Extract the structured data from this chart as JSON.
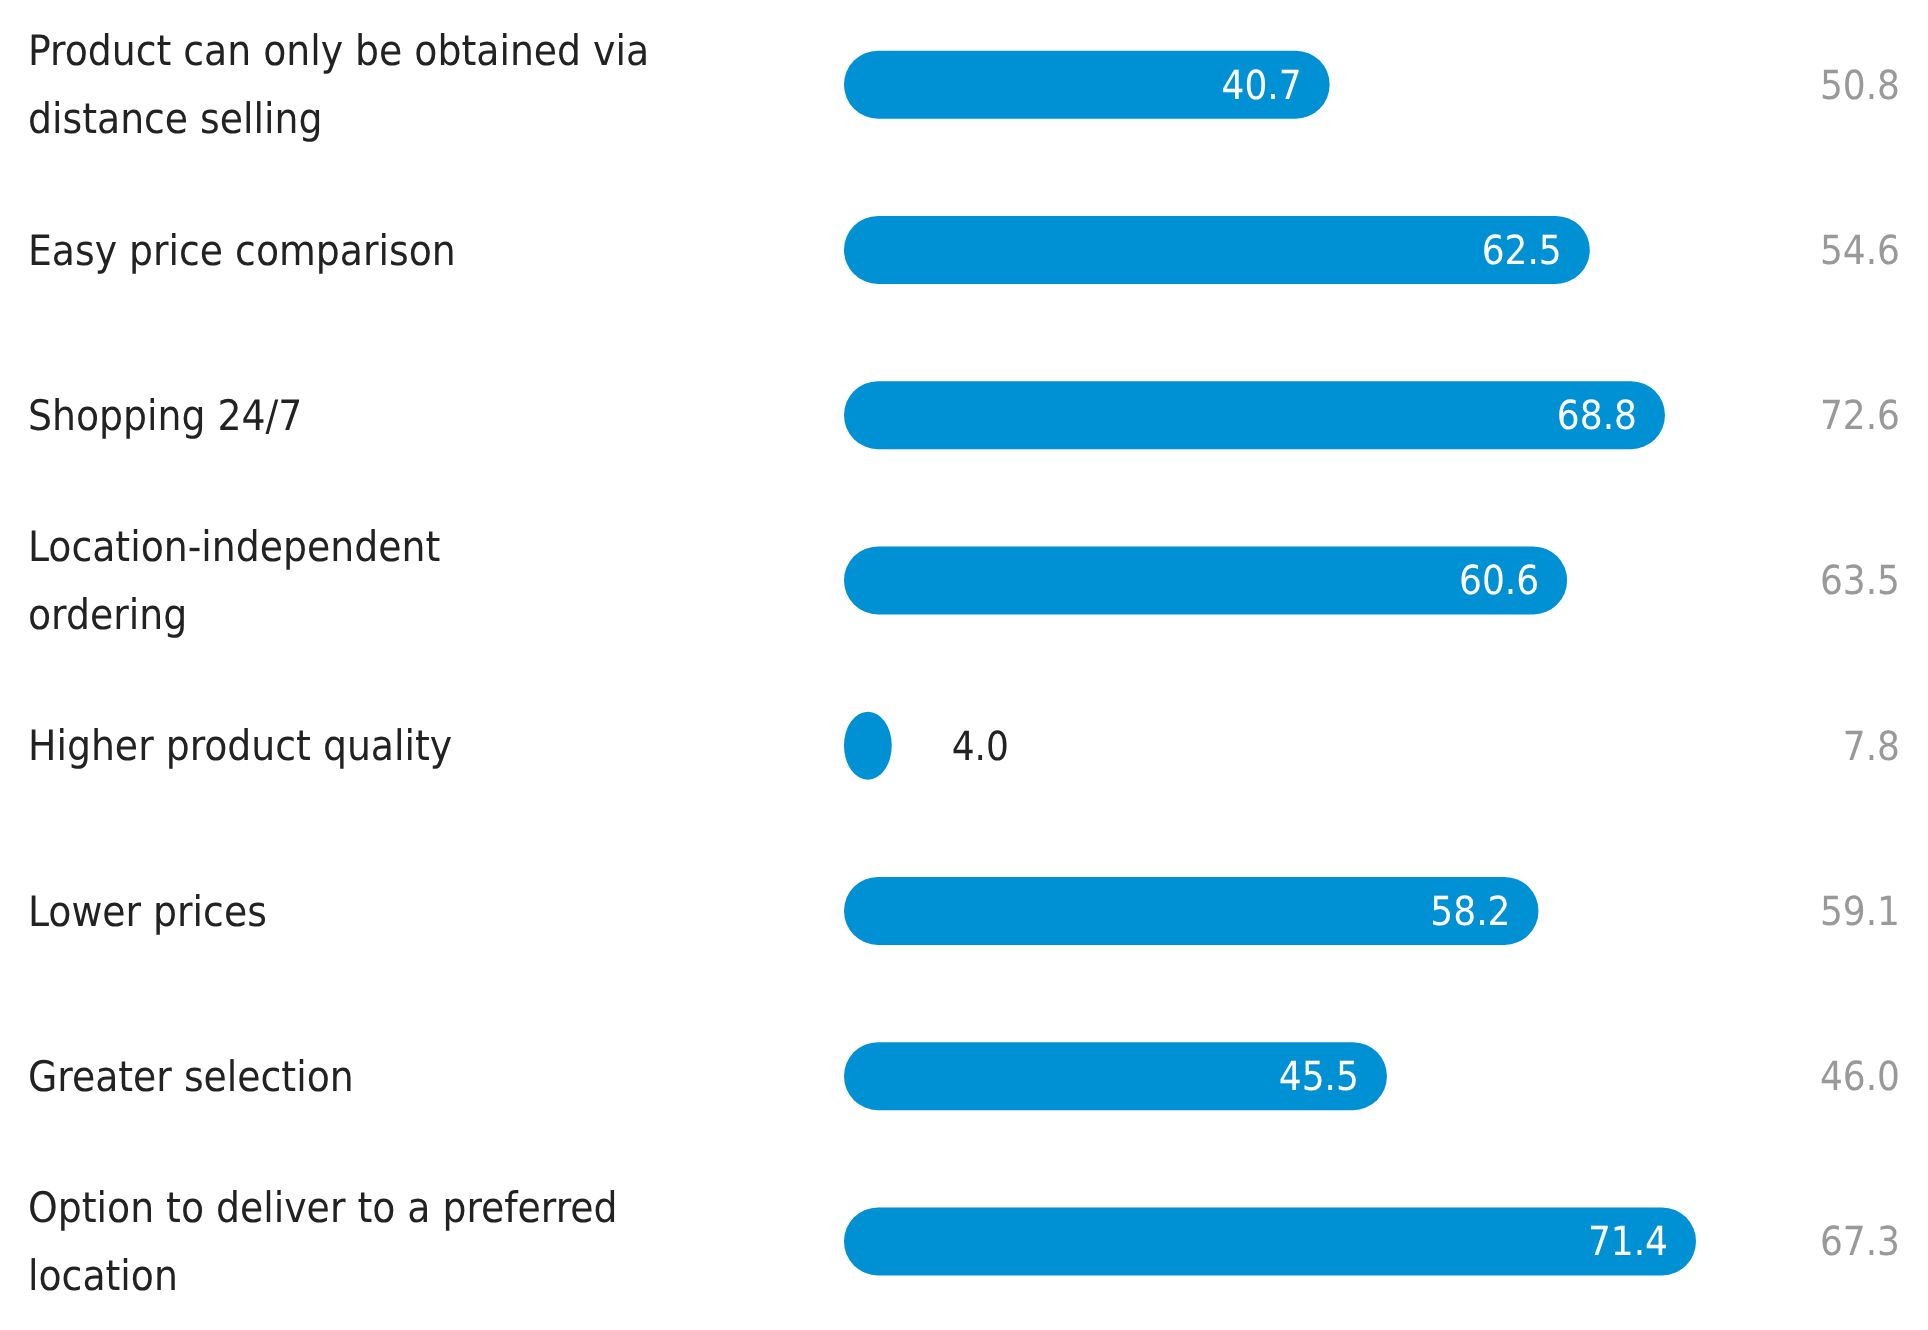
{
  "chart_data": {
    "type": "bar",
    "orientation": "horizontal",
    "categories": [
      "Product can only be obtained via\ndistance selling",
      "Easy price comparison",
      "Shopping 24/7",
      "Location-independent\nordering",
      "Higher product quality",
      "Lower prices",
      "Greater selection",
      "Option to deliver to a preferred\nlocation"
    ],
    "series": [
      {
        "color": "#0090d4",
        "values": [
          40.7,
          62.5,
          68.8,
          60.6,
          4.0,
          58.2,
          45.5,
          71.4
        ],
        "value_labels": [
          "40.7",
          "62.5",
          "68.8",
          "60.6",
          "4.0",
          "58.2",
          "45.5",
          "71.4"
        ]
      }
    ],
    "annotations": [
      "50.8",
      "54.6",
      "72.6",
      "63.5",
      "7.8",
      "59.1",
      "46.0",
      "67.3"
    ]
  }
}
